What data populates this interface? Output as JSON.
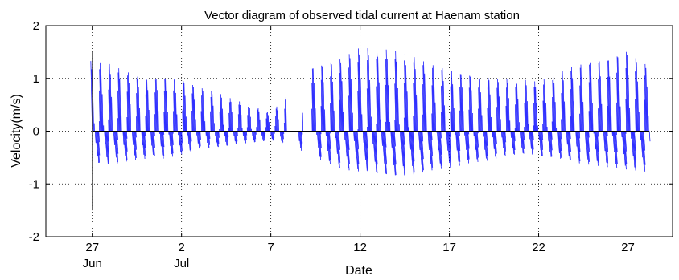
{
  "chart_data": {
    "type": "vector",
    "title": "Vector diagram of  observed tidal current at Haenam station",
    "xlabel": "Date",
    "ylabel": "Velocity(m/s)",
    "x_ticks": [
      {
        "day": 27,
        "label": "27",
        "sublabel": "Jun"
      },
      {
        "day": 32,
        "label": "2",
        "sublabel": "Jul"
      },
      {
        "day": 37,
        "label": "7",
        "sublabel": ""
      },
      {
        "day": 42,
        "label": "12",
        "sublabel": ""
      },
      {
        "day": 47,
        "label": "17",
        "sublabel": ""
      },
      {
        "day": 52,
        "label": "22",
        "sublabel": ""
      },
      {
        "day": 57,
        "label": "27",
        "sublabel": ""
      }
    ],
    "xlim": [
      24.4,
      59.5
    ],
    "ylim": [
      -2,
      2
    ],
    "y_ticks": [
      2,
      1,
      0,
      -1,
      -2
    ],
    "grid": true,
    "series_color": "#0000ff",
    "baseline_color": "#000000",
    "time_span_days": [
      27.0,
      58.2
    ],
    "data_gaps_days": [
      [
        37.9,
        38.5
      ],
      [
        38.8,
        39.3
      ]
    ],
    "envelope": {
      "days": [
        27.0,
        28.0,
        29.0,
        30.0,
        31.0,
        32.0,
        33.0,
        34.0,
        35.0,
        36.0,
        37.0,
        38.0,
        39.0,
        40.0,
        41.0,
        42.0,
        43.0,
        44.0,
        45.0,
        46.0,
        47.0,
        48.0,
        49.0,
        50.0,
        51.0,
        52.0,
        53.0,
        54.0,
        55.0,
        56.0,
        57.0,
        58.0
      ],
      "max_flood": [
        1.35,
        1.3,
        1.15,
        1.0,
        1.05,
        1.0,
        0.85,
        0.75,
        0.6,
        0.5,
        0.35,
        0.7,
        1.2,
        1.3,
        1.4,
        1.6,
        1.6,
        1.55,
        1.45,
        1.3,
        1.2,
        1.1,
        1.05,
        1.0,
        1.0,
        0.95,
        1.1,
        1.25,
        1.35,
        1.4,
        1.55,
        1.3
      ],
      "max_ebb": [
        -0.7,
        -0.75,
        -0.65,
        -0.6,
        -0.6,
        -0.5,
        -0.4,
        -0.35,
        -0.3,
        -0.25,
        -0.2,
        -0.3,
        -0.5,
        -0.7,
        -0.85,
        -0.9,
        -0.95,
        -1.0,
        -0.95,
        -0.85,
        -0.8,
        -0.7,
        -0.65,
        -0.55,
        -0.5,
        -0.55,
        -0.6,
        -0.7,
        -0.75,
        -0.8,
        -0.85,
        -0.9
      ]
    }
  }
}
